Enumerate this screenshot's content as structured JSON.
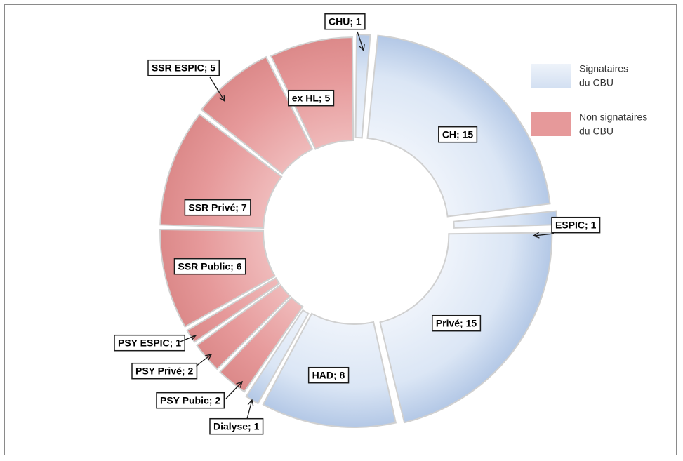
{
  "chart_data": {
    "type": "pie",
    "variant": "donut",
    "title": "",
    "slices": [
      {
        "label": "CHU; 1",
        "name": "CHU",
        "value": 1,
        "group": "signataires"
      },
      {
        "label": "CH; 15",
        "name": "CH",
        "value": 15,
        "group": "signataires"
      },
      {
        "label": "ESPIC; 1",
        "name": "ESPIC",
        "value": 1,
        "group": "signataires"
      },
      {
        "label": "Privé; 15",
        "name": "Privé",
        "value": 15,
        "group": "signataires"
      },
      {
        "label": "HAD; 8",
        "name": "HAD",
        "value": 8,
        "group": "signataires"
      },
      {
        "label": "Dialyse; 1",
        "name": "Dialyse",
        "value": 1,
        "group": "signataires"
      },
      {
        "label": "PSY Pubic; 2",
        "name": "PSY Pubic",
        "value": 2,
        "group": "non_signataires"
      },
      {
        "label": "PSY Privé; 2",
        "name": "PSY Privé",
        "value": 2,
        "group": "non_signataires"
      },
      {
        "label": "PSY ESPIC; 1",
        "name": "PSY ESPIC",
        "value": 1,
        "group": "non_signataires"
      },
      {
        "label": "SSR Public; 6",
        "name": "SSR Public",
        "value": 6,
        "group": "non_signataires"
      },
      {
        "label": "SSR Privé; 7",
        "name": "SSR Privé",
        "value": 7,
        "group": "non_signataires"
      },
      {
        "label": "SSR ESPIC; 5",
        "name": "SSR ESPIC",
        "value": 5,
        "group": "non_signataires"
      },
      {
        "label": "ex HL; 5",
        "name": "ex HL",
        "value": 5,
        "group": "non_signataires"
      }
    ],
    "legend": {
      "placement": "right",
      "entries": [
        {
          "key": "signataires",
          "line1": "Signataires",
          "line2": "du CBU"
        },
        {
          "key": "non_signataires",
          "line1": "Non signataires",
          "line2": "du CBU"
        }
      ]
    },
    "colors": {
      "signataires": "#dbe6f5",
      "signataires_dark": "#a9c0e2",
      "non_signataires": "#e6999a",
      "non_signataires_dark": "#d98585",
      "separator": "#d0d0d0"
    }
  }
}
